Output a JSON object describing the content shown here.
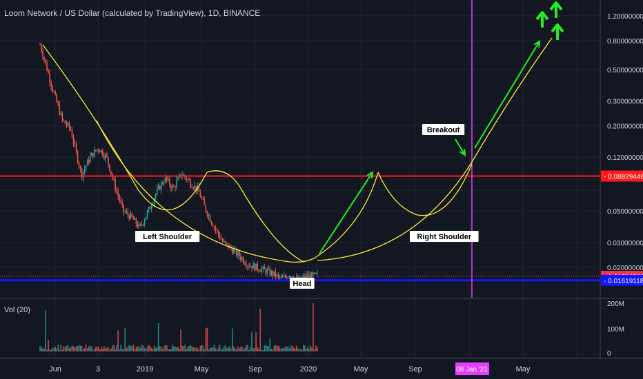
{
  "header": {
    "title": "Loom Network / US Dollar (calculated by TradingView), 1D, BINANCE",
    "volume_label": "Vol (20)"
  },
  "chart_data": {
    "type": "candlestick",
    "symbol": "LOOM/USD",
    "timeframe": "1D",
    "exchange": "BINANCE",
    "log_scale": true,
    "grid": true,
    "price_ticks": [
      "1.20000000",
      "0.80000000",
      "0.50000000",
      "0.30000000",
      "0.20000000",
      "0.12000000",
      "0.05000000",
      "0.03000000",
      "0.02000000"
    ],
    "price_tick_values": [
      1.2,
      0.8,
      0.5,
      0.3,
      0.2,
      0.12,
      0.05,
      0.03,
      0.02
    ],
    "time_ticks": [
      "Jun",
      "3",
      "2019",
      "May",
      "Sep",
      "2020",
      "May",
      "Sep",
      "May"
    ],
    "volume_ticks": [
      "200M",
      "100M",
      "0"
    ],
    "highlighted_date": "08 Jan '21",
    "horizontal_levels": [
      {
        "label": "0.08829446",
        "value": 0.08829446,
        "color": "#ff1a1a"
      },
      {
        "label": "0.01726760",
        "value": 0.0172676,
        "color": "#f23645"
      },
      {
        "label": "0.01619118",
        "value": 0.01619118,
        "color": "#1515ff"
      }
    ],
    "price_path": [
      {
        "t": 0.0,
        "v": 0.75
      },
      {
        "t": 0.02,
        "v": 0.55
      },
      {
        "t": 0.05,
        "v": 0.34
      },
      {
        "t": 0.08,
        "v": 0.22
      },
      {
        "t": 0.11,
        "v": 0.19
      },
      {
        "t": 0.13,
        "v": 0.13
      },
      {
        "t": 0.15,
        "v": 0.09
      },
      {
        "t": 0.18,
        "v": 0.12
      },
      {
        "t": 0.21,
        "v": 0.14
      },
      {
        "t": 0.24,
        "v": 0.12
      },
      {
        "t": 0.27,
        "v": 0.075
      },
      {
        "t": 0.3,
        "v": 0.05
      },
      {
        "t": 0.33,
        "v": 0.045
      },
      {
        "t": 0.36,
        "v": 0.038
      },
      {
        "t": 0.39,
        "v": 0.05
      },
      {
        "t": 0.42,
        "v": 0.068
      },
      {
        "t": 0.45,
        "v": 0.085
      },
      {
        "t": 0.48,
        "v": 0.072
      },
      {
        "t": 0.51,
        "v": 0.092
      },
      {
        "t": 0.54,
        "v": 0.08
      },
      {
        "t": 0.57,
        "v": 0.07
      },
      {
        "t": 0.6,
        "v": 0.05
      },
      {
        "t": 0.63,
        "v": 0.038
      },
      {
        "t": 0.66,
        "v": 0.03
      },
      {
        "t": 0.69,
        "v": 0.027
      },
      {
        "t": 0.72,
        "v": 0.024
      },
      {
        "t": 0.75,
        "v": 0.021
      },
      {
        "t": 0.78,
        "v": 0.02
      },
      {
        "t": 0.81,
        "v": 0.019
      },
      {
        "t": 0.84,
        "v": 0.018
      },
      {
        "t": 0.87,
        "v": 0.0165
      },
      {
        "t": 0.9,
        "v": 0.018
      },
      {
        "t": 0.93,
        "v": 0.016
      },
      {
        "t": 0.96,
        "v": 0.0172
      },
      {
        "t": 1.0,
        "v": 0.0175
      }
    ],
    "annotations": [
      "Left Shoulder",
      "Head",
      "Right Shoulder",
      "Breakout"
    ],
    "colors": {
      "background": "#131722",
      "up": "#26a69a",
      "down": "#ef5350",
      "pattern_line": "#ffeb3b",
      "projection_arrow": "#22ee22",
      "date_marker": "#e040fb"
    }
  }
}
